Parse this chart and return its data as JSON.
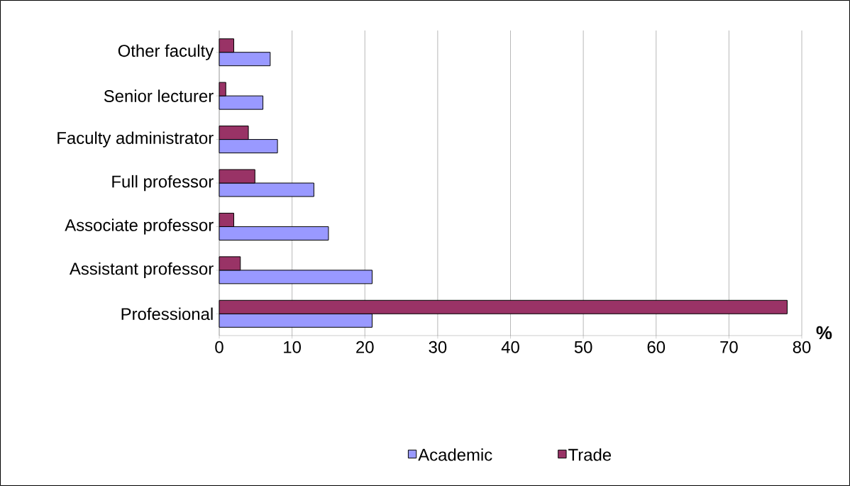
{
  "chart_data": {
    "type": "bar",
    "orientation": "horizontal",
    "xlabel": "%",
    "categories": [
      "Other faculty",
      "Senior lecturer",
      "Faculty administrator",
      "Full professor",
      "Associate professor",
      "Assistant professor",
      "Professional"
    ],
    "series": [
      {
        "name": "Academic",
        "color": "#9999ff",
        "values": [
          7,
          6,
          8,
          13,
          15,
          21,
          21
        ]
      },
      {
        "name": "Trade",
        "color": "#993366",
        "values": [
          2,
          0.9,
          4,
          4.9,
          2,
          2.9,
          78
        ]
      }
    ],
    "xlim": [
      0,
      80
    ],
    "xticks": [
      0,
      10,
      20,
      30,
      40,
      50,
      60,
      70,
      80
    ],
    "grid": "x",
    "legend": "bottom"
  }
}
